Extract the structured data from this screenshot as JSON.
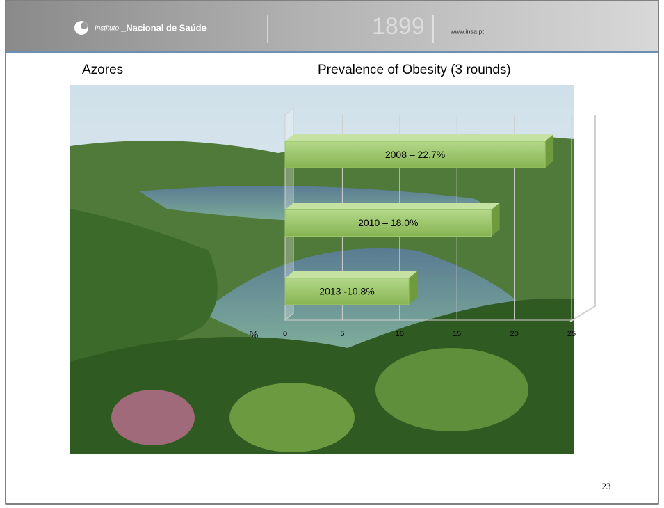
{
  "header": {
    "institute_prefix": "Instituto",
    "institute_name": "_Nacional de Saúde",
    "year": "1899",
    "website": "www.insa.pt"
  },
  "slide": {
    "region": "Azores",
    "page_number": "23"
  },
  "chart_data": {
    "type": "hbar",
    "title": "Prevalence of Obesity (3 rounds)",
    "x_label": "%",
    "values": [
      22.7,
      18.0,
      10.8
    ],
    "value_labels": [
      "2008 – 22,7%",
      "2010 – 18.0%",
      "2013 -10,8%"
    ],
    "color": "#9cc46a",
    "xlim": [
      0,
      25
    ],
    "xticks": [
      0,
      5,
      10,
      15,
      20,
      25
    ],
    "grid": true
  }
}
